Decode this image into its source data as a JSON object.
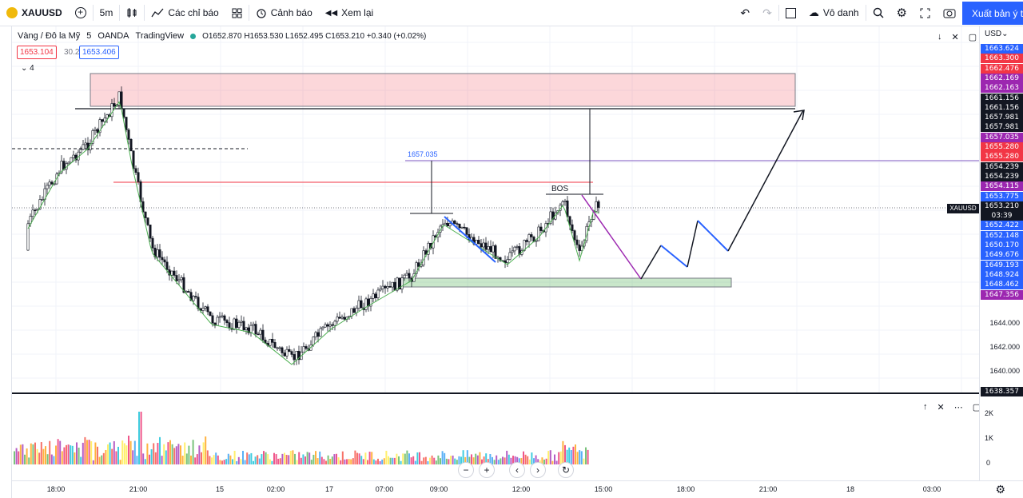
{
  "topbar": {
    "symbol": "XAUUSD",
    "interval": "5m",
    "indicators": "Các chỉ báo",
    "alerts": "Cảnh báo",
    "replay": "Xem lại",
    "layout_name": "Vô danh",
    "export": "Xuất bản ý tưởng"
  },
  "legend": {
    "title": "Vàng / Đô la Mỹ",
    "interval": "5",
    "broker": "OANDA",
    "source": "TradingView",
    "ohlc": "O1652.870 H1653.530 L1652.495 C1653.210 +0.340 (+0.02%)",
    "sell": "1653.104",
    "spread": "30.2",
    "buy": "1653.406",
    "indicator_count": "4"
  },
  "axis": {
    "currency": "USD",
    "ticks": [
      "1644.000",
      "1642.000",
      "1640.000"
    ],
    "labels": [
      {
        "v": "1663.624",
        "c": "#2962ff"
      },
      {
        "v": "1663.300",
        "c": "#f23645"
      },
      {
        "v": "1662.476",
        "c": "#f23645"
      },
      {
        "v": "1662.169",
        "c": "#9c27b0"
      },
      {
        "v": "1662.163",
        "c": "#9c27b0"
      },
      {
        "v": "1661.156",
        "c": "#131722"
      },
      {
        "v": "1661.156",
        "c": "#131722"
      },
      {
        "v": "1657.981",
        "c": "#131722"
      },
      {
        "v": "1657.981",
        "c": "#131722"
      },
      {
        "v": "1657.035",
        "c": "#9c27b0"
      },
      {
        "v": "1655.280",
        "c": "#f23645"
      },
      {
        "v": "1655.280",
        "c": "#f23645"
      },
      {
        "v": "1654.239",
        "c": "#131722"
      },
      {
        "v": "1654.239",
        "c": "#131722"
      },
      {
        "v": "1654.115",
        "c": "#9c27b0"
      },
      {
        "v": "1653.775",
        "c": "#2962ff"
      },
      {
        "v": "1653.210",
        "c": "#131722"
      },
      {
        "v": "03:39",
        "c": "#131722"
      },
      {
        "v": "1652.422",
        "c": "#2962ff"
      },
      {
        "v": "1652.148",
        "c": "#2962ff"
      },
      {
        "v": "1650.170",
        "c": "#2962ff"
      },
      {
        "v": "1649.676",
        "c": "#2962ff"
      },
      {
        "v": "1649.193",
        "c": "#2962ff"
      },
      {
        "v": "1648.924",
        "c": "#2962ff"
      },
      {
        "v": "1648.462",
        "c": "#2962ff"
      },
      {
        "v": "1647.356",
        "c": "#9c27b0"
      }
    ],
    "bottom_label": "1638.357",
    "symbol_tag": "XAUUSD"
  },
  "annotations": {
    "level_label": "1657.035",
    "bos": "BOS"
  },
  "volume": {
    "ticks": [
      "2K",
      "1K",
      "0"
    ]
  },
  "time_axis": {
    "labels": [
      {
        "t": "18:00",
        "x": 70
      },
      {
        "t": "21:00",
        "x": 173
      },
      {
        "t": "15",
        "x": 275
      },
      {
        "t": "02:00",
        "x": 345
      },
      {
        "t": "17",
        "x": 412
      },
      {
        "t": "07:00",
        "x": 481
      },
      {
        "t": "09:00",
        "x": 549
      },
      {
        "t": "12:00",
        "x": 652
      },
      {
        "t": "15:00",
        "x": 755
      },
      {
        "t": "18:00",
        "x": 858
      },
      {
        "t": "21:00",
        "x": 961
      },
      {
        "t": "18",
        "x": 1064
      },
      {
        "t": "03:00",
        "x": 1166
      }
    ]
  },
  "colors": {
    "up": "#26a69a",
    "down": "#131722",
    "accent": "#2962ff"
  }
}
